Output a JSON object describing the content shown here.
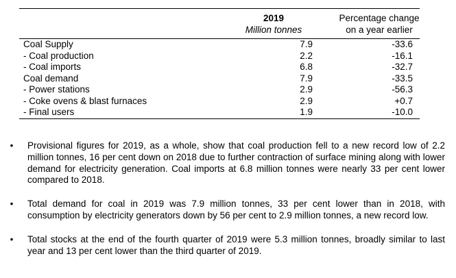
{
  "table": {
    "header": {
      "year": "2019",
      "unit": "Million tonnes",
      "change": "Percentage change on a year earlier"
    },
    "rows": [
      {
        "label": "Coal Supply",
        "value": "7.9",
        "change": "-33.6"
      },
      {
        "label": "- Coal production",
        "value": "2.2",
        "change": "-16.1"
      },
      {
        "label": "- Coal imports",
        "value": "6.8",
        "change": "-32.7"
      },
      {
        "label": "Coal demand",
        "value": "7.9",
        "change": "-33.5"
      },
      {
        "label": "- Power stations",
        "value": "2.9",
        "change": "-56.3"
      },
      {
        "label": "- Coke ovens & blast furnaces",
        "value": "2.9",
        "change": "+0.7"
      },
      {
        "label": "- Final users",
        "value": "1.9",
        "change": "-10.0"
      }
    ]
  },
  "bullets": [
    "Provisional figures for 2019, as a whole, show that coal production fell to a new record low of 2.2 million tonnes, 16 per cent down on 2018 due to further contraction of surface mining along with lower demand for electricity generation. Coal imports at 6.8 million tonnes were nearly 33 per cent lower compared to 2018.",
    "Total demand for coal in 2019 was 7.9 million tonnes, 33 per cent lower than in 2018, with consumption by electricity generators down by 56 per cent to 2.9 million tonnes, a new record low.",
    "Total stocks at the end of the fourth quarter of 2019 were 5.3 million tonnes, broadly similar to last year and 13 per cent lower than the third quarter of 2019."
  ],
  "bullet_symbol": "•"
}
